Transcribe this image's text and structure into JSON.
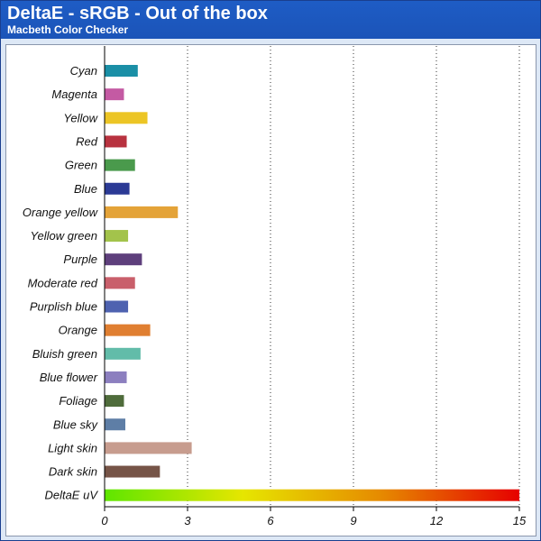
{
  "header": {
    "title": "DeltaE - sRGB - Out of the box",
    "subtitle": "Macbeth Color Checker"
  },
  "chart_data": {
    "type": "bar",
    "orientation": "horizontal",
    "title": "DeltaE - sRGB - Out of the box",
    "subtitle": "Macbeth Color Checker",
    "xlabel": "",
    "ylabel": "",
    "xlim": [
      0,
      15
    ],
    "xticks": [
      0,
      3,
      6,
      9,
      12,
      15
    ],
    "grid": "vertical dotted",
    "categories": [
      "Cyan",
      "Magenta",
      "Yellow",
      "Red",
      "Green",
      "Blue",
      "Orange yellow",
      "Yellow green",
      "Purple",
      "Moderate red",
      "Purplish blue",
      "Orange",
      "Bluish green",
      "Blue flower",
      "Foliage",
      "Blue sky",
      "Light skin",
      "Dark skin",
      "DeltaE uV"
    ],
    "values": [
      1.2,
      0.7,
      1.55,
      0.8,
      1.1,
      0.9,
      2.65,
      0.85,
      1.35,
      1.1,
      0.85,
      1.65,
      1.3,
      0.8,
      0.7,
      0.75,
      3.15,
      2.0,
      15
    ],
    "colors": [
      "#1a8fa6",
      "#c45aa3",
      "#ecc525",
      "#b8323f",
      "#4a9a4c",
      "#2b3a95",
      "#e4a338",
      "#a3c34b",
      "#5e3f7c",
      "#c95f6b",
      "#4e62b0",
      "#e07f31",
      "#62bca9",
      "#8c7fbf",
      "#4f6c3b",
      "#5e7ea6",
      "#c79c8e",
      "#765447",
      "gradient"
    ],
    "gradient_stops": [
      "#5ee600",
      "#e6e600",
      "#e68a00",
      "#e60000"
    ]
  }
}
